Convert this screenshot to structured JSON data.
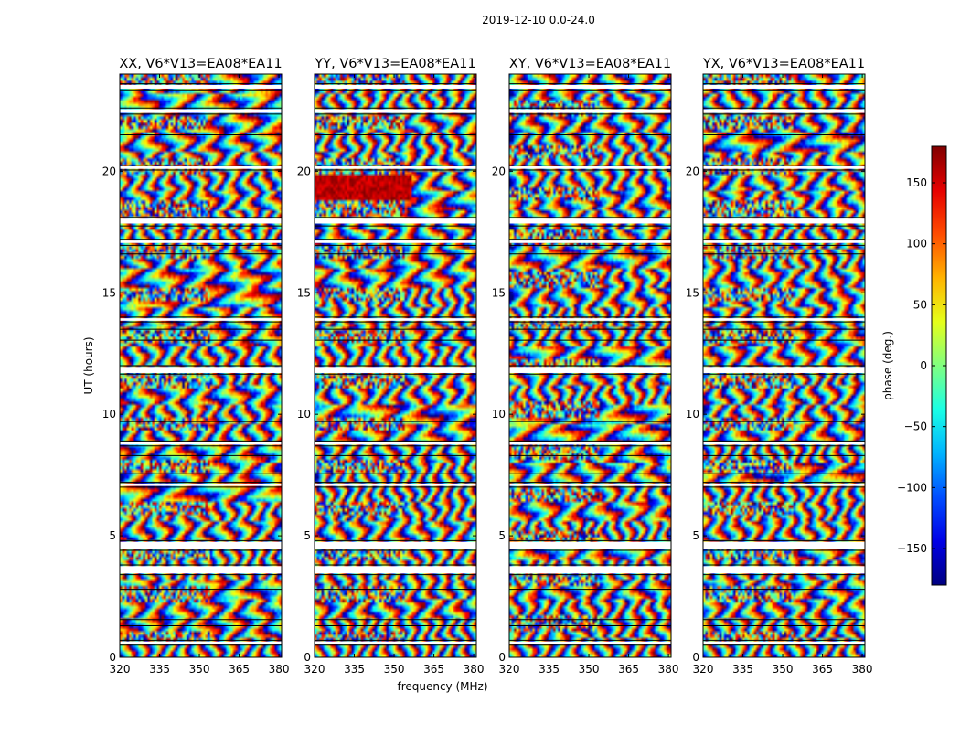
{
  "figure": {
    "suptitle": "2019-12-10 0.0-24.0",
    "xlabel": "frequency (MHz)",
    "ylabel": "UT (hours)",
    "colorbar_label": "phase (deg.)"
  },
  "chart_data": {
    "type": "heatmap",
    "colormap": "jet",
    "xlim": [
      320,
      381
    ],
    "ylim": [
      0,
      24
    ],
    "xticks": [
      "320",
      "335",
      "350",
      "365",
      "380"
    ],
    "yticks": [
      "0",
      "5",
      "10",
      "15",
      "20"
    ],
    "color_range": [
      -180,
      180
    ],
    "colorbar_ticks": [
      "150",
      "100",
      "50",
      "0",
      "−50",
      "−100",
      "−150"
    ],
    "grid": false,
    "colors": {
      "background": "#ffffff",
      "frame": "#000000",
      "flagged": "#ffffff"
    },
    "panels": [
      {
        "title": "XX, V6*V13=EA08*EA11",
        "seed": 11
      },
      {
        "title": "YY, V6*V13=EA08*EA11",
        "seed": 23
      },
      {
        "title": "XY, V6*V13=EA08*EA11",
        "seed": 37
      },
      {
        "title": "YX, V6*V13=EA08*EA11",
        "seed": 53
      }
    ]
  }
}
